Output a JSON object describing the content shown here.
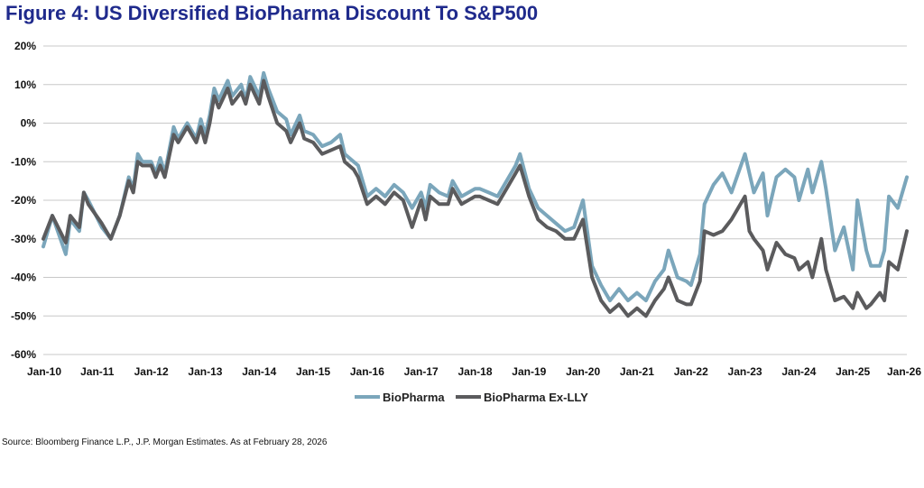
{
  "title": "Figure 4: US Diversified BioPharma Discount To S&P500",
  "source": "Source: Bloomberg Finance L.P., J.P. Morgan Estimates. As at February 28, 2026",
  "chart_data": {
    "type": "line",
    "title": "Figure 4: US Diversified BioPharma Discount To S&P500",
    "xlabel": "",
    "ylabel": "",
    "ylim": [
      -60,
      20
    ],
    "y_ticks": [
      "20%",
      "10%",
      "0%",
      "-10%",
      "-20%",
      "-30%",
      "-40%",
      "-50%",
      "-60%"
    ],
    "x_ticks": [
      "Jan-10",
      "Jan-11",
      "Jan-12",
      "Jan-13",
      "Jan-14",
      "Jan-15",
      "Jan-16",
      "Jan-17",
      "Jan-18",
      "Jan-19",
      "Jan-20",
      "Jan-21",
      "Jan-22",
      "Jan-23",
      "Jan-24",
      "Jan-25",
      "Jan-26"
    ],
    "grid": "horizontal",
    "legend": "bottom-center",
    "series": [
      {
        "name": "BioPharma",
        "color": "#7ba6bb",
        "points": [
          [
            "Jan-10",
            -32
          ],
          [
            "Mar-10",
            -24
          ],
          [
            "Jun-10",
            -34
          ],
          [
            "Jul-10",
            -25
          ],
          [
            "Sep-10",
            -28
          ],
          [
            "Oct-10",
            -18
          ],
          [
            "Nov-10",
            -20
          ],
          [
            "Feb-11",
            -27
          ],
          [
            "Apr-11",
            -30
          ],
          [
            "Jun-11",
            -24
          ],
          [
            "Aug-11",
            -14
          ],
          [
            "Sep-11",
            -17
          ],
          [
            "Oct-11",
            -8
          ],
          [
            "Nov-11",
            -10
          ],
          [
            "Jan-12",
            -10
          ],
          [
            "Feb-12",
            -13
          ],
          [
            "Mar-12",
            -9
          ],
          [
            "Apr-12",
            -13
          ],
          [
            "Jun-12",
            -1
          ],
          [
            "Jul-12",
            -4
          ],
          [
            "Sep-12",
            0
          ],
          [
            "Nov-12",
            -4
          ],
          [
            "Dec-12",
            1
          ],
          [
            "Jan-13",
            -3
          ],
          [
            "Feb-13",
            2
          ],
          [
            "Mar-13",
            9
          ],
          [
            "Apr-13",
            6
          ],
          [
            "Jun-13",
            11
          ],
          [
            "Jul-13",
            7
          ],
          [
            "Sep-13",
            10
          ],
          [
            "Oct-13",
            6
          ],
          [
            "Nov-13",
            12
          ],
          [
            "Jan-14",
            7
          ],
          [
            "Feb-14",
            13
          ],
          [
            "Mar-14",
            9
          ],
          [
            "May-14",
            3
          ],
          [
            "Jul-14",
            1
          ],
          [
            "Aug-14",
            -3
          ],
          [
            "Oct-14",
            2
          ],
          [
            "Nov-14",
            -2
          ],
          [
            "Jan-15",
            -3
          ],
          [
            "Mar-15",
            -6
          ],
          [
            "May-15",
            -5
          ],
          [
            "Jul-15",
            -3
          ],
          [
            "Aug-15",
            -8
          ],
          [
            "Oct-15",
            -10
          ],
          [
            "Nov-15",
            -11
          ],
          [
            "Jan-16",
            -19
          ],
          [
            "Mar-16",
            -17
          ],
          [
            "May-16",
            -19
          ],
          [
            "Jul-16",
            -16
          ],
          [
            "Sep-16",
            -18
          ],
          [
            "Nov-16",
            -22
          ],
          [
            "Jan-17",
            -18
          ],
          [
            "Feb-17",
            -22
          ],
          [
            "Mar-17",
            -16
          ],
          [
            "May-17",
            -18
          ],
          [
            "Jul-17",
            -19
          ],
          [
            "Aug-17",
            -15
          ],
          [
            "Oct-17",
            -19
          ],
          [
            "Jan-18",
            -17
          ],
          [
            "Feb-18",
            -17
          ],
          [
            "Apr-18",
            -18
          ],
          [
            "Jun-18",
            -19
          ],
          [
            "Aug-18",
            -15
          ],
          [
            "Oct-18",
            -11
          ],
          [
            "Nov-18",
            -8
          ],
          [
            "Jan-19",
            -17
          ],
          [
            "Mar-19",
            -22
          ],
          [
            "May-19",
            -24
          ],
          [
            "Jul-19",
            -26
          ],
          [
            "Sep-19",
            -28
          ],
          [
            "Nov-19",
            -27
          ],
          [
            "Jan-20",
            -20
          ],
          [
            "Mar-20",
            -37
          ],
          [
            "May-20",
            -42
          ],
          [
            "Jul-20",
            -46
          ],
          [
            "Sep-20",
            -43
          ],
          [
            "Nov-20",
            -46
          ],
          [
            "Jan-21",
            -44
          ],
          [
            "Mar-21",
            -46
          ],
          [
            "May-21",
            -41
          ],
          [
            "Jul-21",
            -38
          ],
          [
            "Aug-21",
            -33
          ],
          [
            "Oct-21",
            -40
          ],
          [
            "Dec-21",
            -41
          ],
          [
            "Jan-22",
            -42
          ],
          [
            "Feb-22",
            -38
          ],
          [
            "Mar-22",
            -34
          ],
          [
            "Apr-22",
            -21
          ],
          [
            "Jun-22",
            -16
          ],
          [
            "Aug-22",
            -13
          ],
          [
            "Oct-22",
            -18
          ],
          [
            "Jan-23",
            -8
          ],
          [
            "Feb-23",
            -13
          ],
          [
            "Mar-23",
            -18
          ],
          [
            "May-23",
            -13
          ],
          [
            "Jun-23",
            -24
          ],
          [
            "Aug-23",
            -14
          ],
          [
            "Oct-23",
            -12
          ],
          [
            "Dec-23",
            -14
          ],
          [
            "Jan-24",
            -20
          ],
          [
            "Mar-24",
            -12
          ],
          [
            "Apr-24",
            -18
          ],
          [
            "Jun-24",
            -10
          ],
          [
            "Jul-24",
            -17
          ],
          [
            "Aug-24",
            -25
          ],
          [
            "Sep-24",
            -33
          ],
          [
            "Nov-24",
            -27
          ],
          [
            "Jan-25",
            -38
          ],
          [
            "Feb-25",
            -20
          ],
          [
            "Apr-25",
            -33
          ],
          [
            "May-25",
            -37
          ],
          [
            "Jul-25",
            -37
          ],
          [
            "Aug-25",
            -33
          ],
          [
            "Sep-25",
            -19
          ],
          [
            "Nov-25",
            -22
          ],
          [
            "Jan-26",
            -14
          ]
        ]
      },
      {
        "name": "BioPharma Ex-LLY",
        "color": "#5b5b5d",
        "points": [
          [
            "Jan-10",
            -30
          ],
          [
            "Mar-10",
            -24
          ],
          [
            "Jun-10",
            -31
          ],
          [
            "Jul-10",
            -24
          ],
          [
            "Sep-10",
            -27
          ],
          [
            "Oct-10",
            -18
          ],
          [
            "Nov-10",
            -21
          ],
          [
            "Feb-11",
            -26
          ],
          [
            "Apr-11",
            -30
          ],
          [
            "Jun-11",
            -24
          ],
          [
            "Aug-11",
            -15
          ],
          [
            "Sep-11",
            -18
          ],
          [
            "Oct-11",
            -10
          ],
          [
            "Nov-11",
            -11
          ],
          [
            "Jan-12",
            -11
          ],
          [
            "Feb-12",
            -14
          ],
          [
            "Mar-12",
            -11
          ],
          [
            "Apr-12",
            -14
          ],
          [
            "Jun-12",
            -3
          ],
          [
            "Jul-12",
            -5
          ],
          [
            "Sep-12",
            -1
          ],
          [
            "Nov-12",
            -5
          ],
          [
            "Dec-12",
            -1
          ],
          [
            "Jan-13",
            -5
          ],
          [
            "Feb-13",
            0
          ],
          [
            "Mar-13",
            7
          ],
          [
            "Apr-13",
            4
          ],
          [
            "Jun-13",
            9
          ],
          [
            "Jul-13",
            5
          ],
          [
            "Sep-13",
            8
          ],
          [
            "Oct-13",
            5
          ],
          [
            "Nov-13",
            10
          ],
          [
            "Jan-14",
            5
          ],
          [
            "Feb-14",
            11
          ],
          [
            "Mar-14",
            7
          ],
          [
            "May-14",
            0
          ],
          [
            "Jul-14",
            -2
          ],
          [
            "Aug-14",
            -5
          ],
          [
            "Oct-14",
            0
          ],
          [
            "Nov-14",
            -4
          ],
          [
            "Jan-15",
            -5
          ],
          [
            "Mar-15",
            -8
          ],
          [
            "May-15",
            -7
          ],
          [
            "Jul-15",
            -6
          ],
          [
            "Aug-15",
            -10
          ],
          [
            "Oct-15",
            -12
          ],
          [
            "Nov-15",
            -14
          ],
          [
            "Jan-16",
            -21
          ],
          [
            "Mar-16",
            -19
          ],
          [
            "May-16",
            -21
          ],
          [
            "Jul-16",
            -18
          ],
          [
            "Sep-16",
            -20
          ],
          [
            "Nov-16",
            -27
          ],
          [
            "Jan-17",
            -20
          ],
          [
            "Feb-17",
            -25
          ],
          [
            "Mar-17",
            -19
          ],
          [
            "May-17",
            -21
          ],
          [
            "Jul-17",
            -21
          ],
          [
            "Aug-17",
            -17
          ],
          [
            "Oct-17",
            -21
          ],
          [
            "Jan-18",
            -19
          ],
          [
            "Feb-18",
            -19
          ],
          [
            "Apr-18",
            -20
          ],
          [
            "Jun-18",
            -21
          ],
          [
            "Aug-18",
            -17
          ],
          [
            "Oct-18",
            -13
          ],
          [
            "Nov-18",
            -11
          ],
          [
            "Jan-19",
            -19
          ],
          [
            "Mar-19",
            -25
          ],
          [
            "May-19",
            -27
          ],
          [
            "Jul-19",
            -28
          ],
          [
            "Sep-19",
            -30
          ],
          [
            "Nov-19",
            -30
          ],
          [
            "Jan-20",
            -25
          ],
          [
            "Mar-20",
            -40
          ],
          [
            "May-20",
            -46
          ],
          [
            "Jul-20",
            -49
          ],
          [
            "Sep-20",
            -47
          ],
          [
            "Nov-20",
            -50
          ],
          [
            "Jan-21",
            -48
          ],
          [
            "Mar-21",
            -50
          ],
          [
            "May-21",
            -46
          ],
          [
            "Jul-21",
            -43
          ],
          [
            "Aug-21",
            -40
          ],
          [
            "Oct-21",
            -46
          ],
          [
            "Dec-21",
            -47
          ],
          [
            "Jan-22",
            -47
          ],
          [
            "Feb-22",
            -44
          ],
          [
            "Mar-22",
            -41
          ],
          [
            "Apr-22",
            -28
          ],
          [
            "Jun-22",
            -29
          ],
          [
            "Aug-22",
            -28
          ],
          [
            "Oct-22",
            -25
          ],
          [
            "Jan-23",
            -19
          ],
          [
            "Feb-23",
            -28
          ],
          [
            "Mar-23",
            -30
          ],
          [
            "May-23",
            -33
          ],
          [
            "Jun-23",
            -38
          ],
          [
            "Aug-23",
            -31
          ],
          [
            "Oct-23",
            -34
          ],
          [
            "Dec-23",
            -35
          ],
          [
            "Jan-24",
            -38
          ],
          [
            "Mar-24",
            -36
          ],
          [
            "Apr-24",
            -40
          ],
          [
            "Jun-24",
            -30
          ],
          [
            "Jul-24",
            -38
          ],
          [
            "Aug-24",
            -42
          ],
          [
            "Sep-24",
            -46
          ],
          [
            "Nov-24",
            -45
          ],
          [
            "Jan-25",
            -48
          ],
          [
            "Feb-25",
            -44
          ],
          [
            "Apr-25",
            -48
          ],
          [
            "May-25",
            -47
          ],
          [
            "Jul-25",
            -44
          ],
          [
            "Aug-25",
            -46
          ],
          [
            "Sep-25",
            -36
          ],
          [
            "Nov-25",
            -38
          ],
          [
            "Jan-26",
            -28
          ]
        ]
      }
    ]
  }
}
